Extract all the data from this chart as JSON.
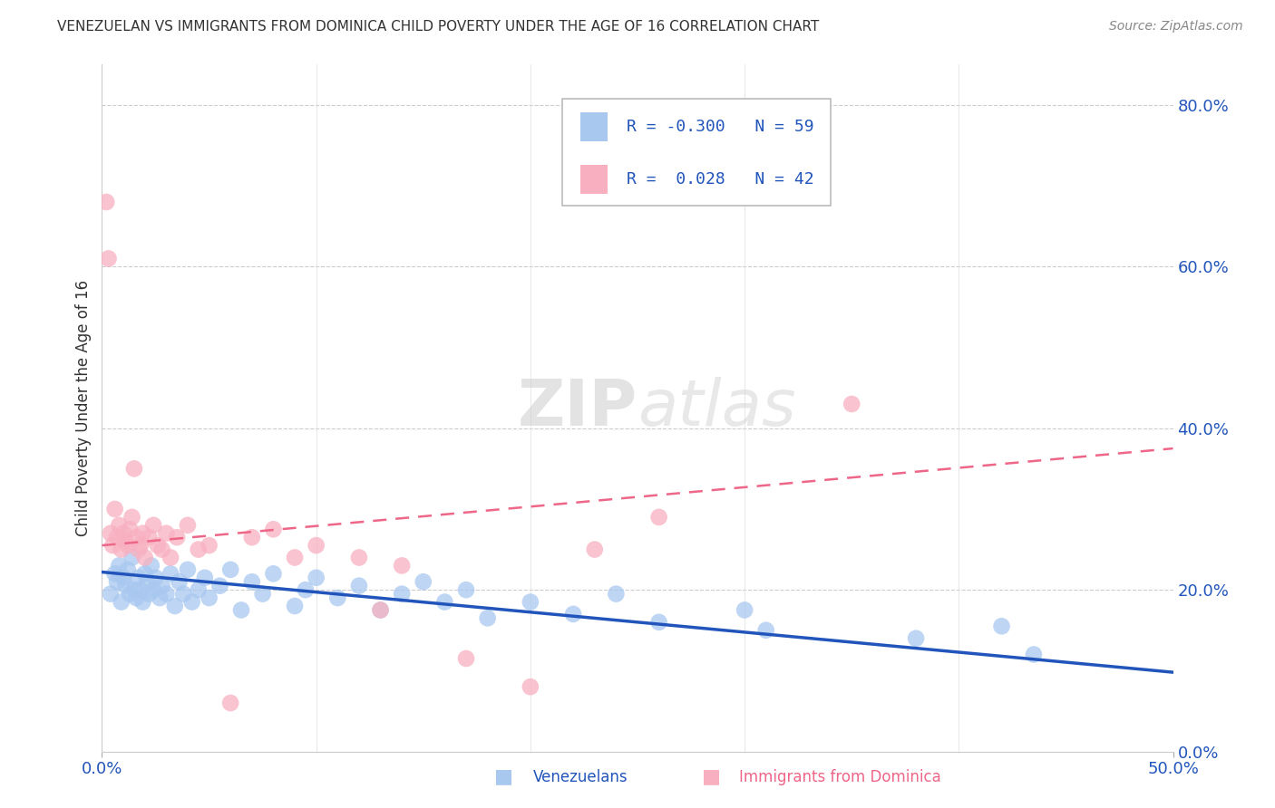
{
  "title": "VENEZUELAN VS IMMIGRANTS FROM DOMINICA CHILD POVERTY UNDER THE AGE OF 16 CORRELATION CHART",
  "source": "Source: ZipAtlas.com",
  "xlabel_label": "Venezuelans",
  "ylabel_label": "Child Poverty Under the Age of 16",
  "xlabel2_label": "Immigrants from Dominica",
  "x_min": 0.0,
  "x_max": 0.5,
  "y_min": 0.0,
  "y_max": 0.85,
  "y_ticks_right": [
    0.0,
    0.2,
    0.4,
    0.6,
    0.8
  ],
  "y_tick_labels_right": [
    "0.0%",
    "20.0%",
    "40.0%",
    "60.0%",
    "80.0%"
  ],
  "R_blue": -0.3,
  "N_blue": 59,
  "R_pink": 0.028,
  "N_pink": 42,
  "blue_color": "#A8C8F0",
  "blue_line_color": "#2255BB",
  "pink_color": "#F8B0C0",
  "pink_line_color": "#EE6688",
  "watermark_zip": "ZIP",
  "watermark_atlas": "atlas",
  "blue_trend_x0": 0.0,
  "blue_trend_y0": 0.222,
  "blue_trend_x1": 0.5,
  "blue_trend_y1": 0.098,
  "pink_trend_x0": 0.0,
  "pink_trend_y0": 0.255,
  "pink_trend_x1": 0.5,
  "pink_trend_y1": 0.375,
  "blue_points_x": [
    0.004,
    0.006,
    0.007,
    0.008,
    0.009,
    0.01,
    0.011,
    0.012,
    0.013,
    0.014,
    0.015,
    0.016,
    0.017,
    0.018,
    0.019,
    0.02,
    0.021,
    0.022,
    0.023,
    0.024,
    0.025,
    0.027,
    0.028,
    0.03,
    0.032,
    0.034,
    0.036,
    0.038,
    0.04,
    0.042,
    0.045,
    0.048,
    0.05,
    0.055,
    0.06,
    0.065,
    0.07,
    0.075,
    0.08,
    0.09,
    0.095,
    0.1,
    0.11,
    0.12,
    0.13,
    0.14,
    0.15,
    0.16,
    0.17,
    0.18,
    0.2,
    0.22,
    0.24,
    0.26,
    0.3,
    0.31,
    0.38,
    0.42,
    0.435
  ],
  "blue_points_y": [
    0.195,
    0.22,
    0.21,
    0.23,
    0.185,
    0.215,
    0.205,
    0.225,
    0.195,
    0.24,
    0.2,
    0.19,
    0.215,
    0.2,
    0.185,
    0.22,
    0.21,
    0.195,
    0.23,
    0.2,
    0.215,
    0.19,
    0.205,
    0.195,
    0.22,
    0.18,
    0.21,
    0.195,
    0.225,
    0.185,
    0.2,
    0.215,
    0.19,
    0.205,
    0.225,
    0.175,
    0.21,
    0.195,
    0.22,
    0.18,
    0.2,
    0.215,
    0.19,
    0.205,
    0.175,
    0.195,
    0.21,
    0.185,
    0.2,
    0.165,
    0.185,
    0.17,
    0.195,
    0.16,
    0.175,
    0.15,
    0.14,
    0.155,
    0.12
  ],
  "pink_points_x": [
    0.002,
    0.003,
    0.004,
    0.005,
    0.006,
    0.007,
    0.008,
    0.009,
    0.01,
    0.011,
    0.012,
    0.013,
    0.014,
    0.015,
    0.016,
    0.017,
    0.018,
    0.019,
    0.02,
    0.022,
    0.024,
    0.026,
    0.028,
    0.03,
    0.032,
    0.035,
    0.04,
    0.045,
    0.05,
    0.06,
    0.07,
    0.08,
    0.09,
    0.1,
    0.12,
    0.13,
    0.14,
    0.17,
    0.2,
    0.23,
    0.26,
    0.35
  ],
  "pink_points_y": [
    0.68,
    0.61,
    0.27,
    0.255,
    0.3,
    0.265,
    0.28,
    0.25,
    0.27,
    0.26,
    0.255,
    0.275,
    0.29,
    0.35,
    0.265,
    0.25,
    0.255,
    0.27,
    0.24,
    0.265,
    0.28,
    0.255,
    0.25,
    0.27,
    0.24,
    0.265,
    0.28,
    0.25,
    0.255,
    0.06,
    0.265,
    0.275,
    0.24,
    0.255,
    0.24,
    0.175,
    0.23,
    0.115,
    0.08,
    0.25,
    0.29,
    0.43
  ]
}
